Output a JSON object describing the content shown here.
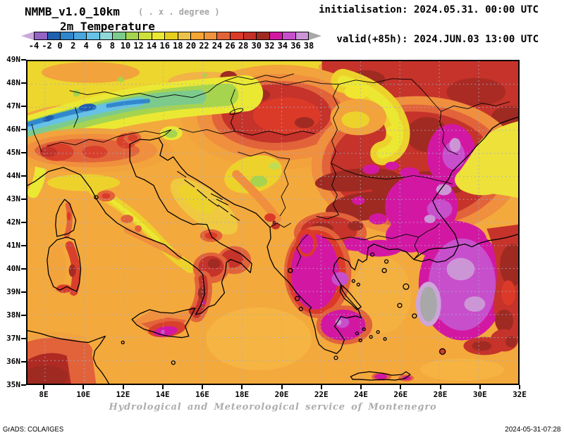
{
  "header": {
    "model_title": "NMMB_v1.0_10km",
    "resolution_note": "( . x . degree )",
    "variable_title": "2m Temperature",
    "init_line": "initialisation: 2024.05.31. 00:00 UTC",
    "valid_line": "valid(+85h): 2024.JUN.03 13:00 UTC"
  },
  "colorbar": {
    "tick_labels": [
      "-4",
      "-2",
      "0",
      "2",
      "4",
      "6",
      "8",
      "10",
      "12",
      "14",
      "16",
      "18",
      "20",
      "22",
      "24",
      "26",
      "28",
      "30",
      "32",
      "34",
      "36",
      "38"
    ],
    "segment_colors": [
      "#9263C4",
      "#2060B0",
      "#3086CC",
      "#4AA6DC",
      "#66C2E6",
      "#90D8DA",
      "#7CCB8C",
      "#A6D44E",
      "#CFE03C",
      "#EBE833",
      "#E5CF1E",
      "#EDC24A",
      "#F6A433",
      "#F0923E",
      "#E2633A",
      "#DC3A28",
      "#C23028",
      "#9E2A22",
      "#D218A2",
      "#C84FCC",
      "#CC96D6"
    ],
    "left_arrow_color": "#C9A8DC",
    "right_arrow_color": "#A8A8A8"
  },
  "map": {
    "lat_labels": [
      "49N",
      "48N",
      "47N",
      "46N",
      "45N",
      "44N",
      "43N",
      "42N",
      "41N",
      "40N",
      "39N",
      "38N",
      "37N",
      "36N",
      "35N"
    ],
    "lon_labels": [
      "8E",
      "10E",
      "12E",
      "14E",
      "16E",
      "18E",
      "20E",
      "22E",
      "24E",
      "26E",
      "28E",
      "30E",
      "32E"
    ]
  },
  "footer": {
    "credit": "Hydrological and Meteorological service of Montenegro",
    "grads_stamp": "GrADS: COLA/IGES",
    "timestamp": "2024-05-31-07:28"
  },
  "chart_data": {
    "type": "heatmap",
    "subtype": "filled-contour-weather-map",
    "variable": "2m Temperature",
    "units": "degree C",
    "model": "NMMB_v1.0_10km",
    "initialisation": "2024.05.31. 00:00 UTC",
    "valid": "+85h 2024.JUN.03 13:00 UTC",
    "lon_range_deg_east": [
      8,
      32
    ],
    "lat_range_deg_north": [
      35,
      49
    ],
    "contour_interval": 2,
    "levels_c": [
      -4,
      -2,
      0,
      2,
      4,
      6,
      8,
      10,
      12,
      14,
      16,
      18,
      20,
      22,
      24,
      26,
      28,
      30,
      32,
      34,
      36,
      38
    ],
    "level_colors": [
      "#9263C4",
      "#2060B0",
      "#3086CC",
      "#4AA6DC",
      "#66C2E6",
      "#90D8DA",
      "#7CCB8C",
      "#A6D44E",
      "#CFE03C",
      "#EBE833",
      "#E5CF1E",
      "#EDC24A",
      "#F6A433",
      "#F0923E",
      "#E2633A",
      "#DC3A28",
      "#C23028",
      "#9E2A22",
      "#D218A2",
      "#C84FCC",
      "#CC96D6"
    ],
    "below_range_color": "#C9A8DC",
    "above_range_color": "#A8A8A8",
    "grid": {
      "lat_step_deg": 1,
      "lon_step_deg": 2,
      "style": "dotted"
    },
    "notable_features": [
      {
        "region": "Alps ridge 46-47.5N 8-16E",
        "approx_value_c": "0-10 (blue/green band)"
      },
      {
        "region": "Po valley / NW Italy",
        "approx_value_c": "26-30 (red)"
      },
      {
        "region": "Pannonian plain, Romania, N Serbia",
        "approx_value_c": "28-32 (red / dark red)"
      },
      {
        "region": "E Bulgaria, Moldova, Thrace",
        "approx_value_c": "32-36 (magenta)"
      },
      {
        "region": "Interior Greece, Peloponnese, W Turkey",
        "approx_value_c": "32-38 (magenta/violet)"
      },
      {
        "region": "W Turkey spot near 27E 38.5N",
        "approx_value_c": ">38 (gray)"
      },
      {
        "region": "Central/S Sicily",
        "approx_value_c": "32-36 (magenta)"
      },
      {
        "region": "Tunisia",
        "approx_value_c": "28-32 (dark red)"
      },
      {
        "region": "Adriatic / Ionian / Aegean seas",
        "approx_value_c": "20-24 (orange)"
      },
      {
        "region": "Black Sea",
        "approx_value_c": "16-18 (yellow)"
      }
    ]
  }
}
